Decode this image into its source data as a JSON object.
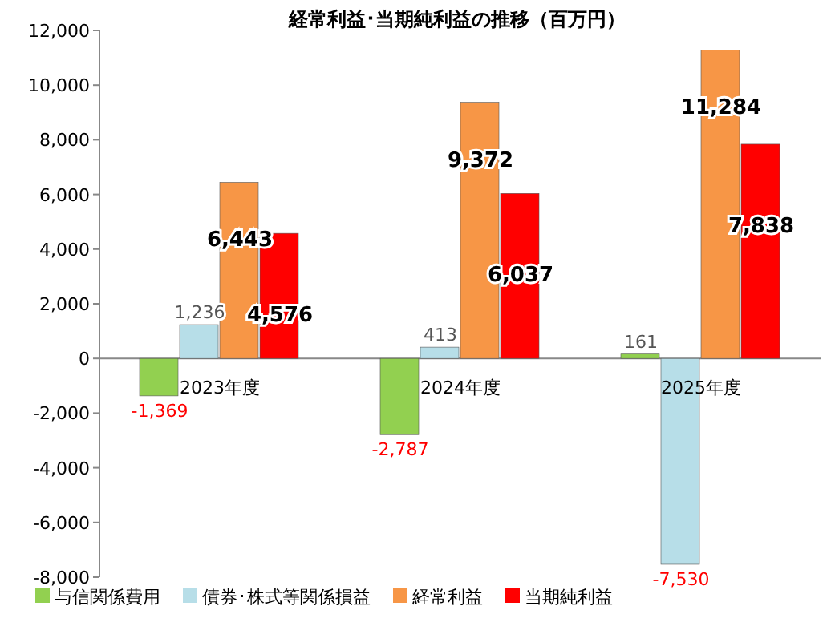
{
  "chart_data": {
    "type": "bar",
    "title": "経常利益･当期純利益の推移（百万円）",
    "categories": [
      "2023年度",
      "2024年度",
      "2025年度"
    ],
    "series": [
      {
        "name": "与信関係費用",
        "color": "#92d050",
        "values": [
          -1369,
          -2787,
          161
        ],
        "value_labels": [
          "-1,369",
          "-2,787",
          "161"
        ]
      },
      {
        "name": "債券･株式等関係損益",
        "color": "#b7dee8",
        "values": [
          1236,
          413,
          -7530
        ],
        "value_labels": [
          "1,236",
          "413",
          "-7,530"
        ]
      },
      {
        "name": "経常利益",
        "color": "#f79646",
        "values": [
          6443,
          9372,
          11284
        ],
        "value_labels": [
          "6,443",
          "9,372",
          "11,284"
        ]
      },
      {
        "name": "当期純利益",
        "color": "#ff0000",
        "values": [
          4576,
          6037,
          7838
        ],
        "value_labels": [
          "4,576",
          "6,037",
          "7,838"
        ]
      }
    ],
    "ylim": [
      -8000,
      12000
    ],
    "yticks": [
      {
        "value": -8000,
        "label": "-8,000"
      },
      {
        "value": -6000,
        "label": "-6,000"
      },
      {
        "value": -4000,
        "label": "-4,000"
      },
      {
        "value": -2000,
        "label": "-2,000"
      },
      0,
      {
        "value": 2000,
        "label": "2,000"
      },
      {
        "value": 4000,
        "label": "4,000"
      },
      {
        "value": 6000,
        "label": "6,000"
      },
      {
        "value": 8000,
        "label": "8,000"
      },
      {
        "value": 10000,
        "label": "10,000"
      },
      {
        "value": 12000,
        "label": "12,000"
      }
    ],
    "grid": false,
    "legend": "bottom"
  }
}
